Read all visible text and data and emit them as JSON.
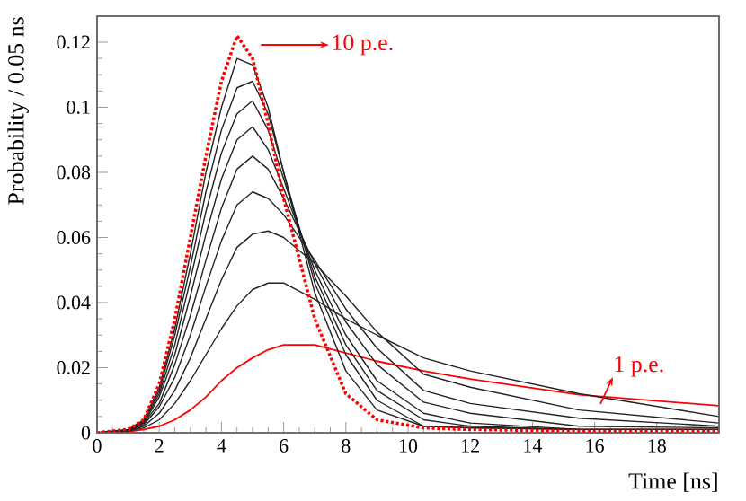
{
  "chart_data": {
    "type": "line",
    "xlabel": "Time [ns]",
    "ylabel": "Probability / 0.05 ns",
    "xlim": [
      0,
      20
    ],
    "ylim": [
      0,
      0.128
    ],
    "xticks": [
      0,
      2,
      4,
      6,
      8,
      10,
      12,
      14,
      16,
      18
    ],
    "yticks": [
      0,
      0.02,
      0.04,
      0.06,
      0.08,
      0.1,
      0.12
    ],
    "grid": false,
    "marker": "none",
    "x": [
      0,
      1,
      1.5,
      2,
      2.5,
      3,
      3.5,
      4,
      4.5,
      5,
      5.5,
      6,
      7,
      8,
      9,
      10.5,
      12,
      15.5,
      20
    ],
    "series": [
      {
        "color": "#ff0000",
        "line_style": "solid",
        "values": [
          0,
          0.0003,
          0.001,
          0.002,
          0.004,
          0.007,
          0.011,
          0.016,
          0.02,
          0.023,
          0.0255,
          0.027,
          0.027,
          0.0245,
          0.022,
          0.019,
          0.0165,
          0.0117,
          0.0083
        ]
      },
      {
        "color": "#222222",
        "line_style": "solid",
        "values": [
          0,
          0.0005,
          0.0015,
          0.004,
          0.009,
          0.016,
          0.024,
          0.032,
          0.039,
          0.044,
          0.046,
          0.046,
          0.041,
          0.035,
          0.03,
          0.023,
          0.019,
          0.012,
          0.005
        ]
      },
      {
        "color": "#222222",
        "line_style": "solid",
        "values": [
          0,
          0.0005,
          0.002,
          0.006,
          0.013,
          0.023,
          0.035,
          0.047,
          0.057,
          0.061,
          0.062,
          0.06,
          0.052,
          0.042,
          0.031,
          0.018,
          0.014,
          0.007,
          0.003
        ]
      },
      {
        "color": "#222222",
        "line_style": "solid",
        "values": [
          0,
          0.0006,
          0.0025,
          0.008,
          0.017,
          0.03,
          0.045,
          0.059,
          0.07,
          0.074,
          0.072,
          0.067,
          0.053,
          0.038,
          0.026,
          0.013,
          0.009,
          0.0045,
          0.002
        ]
      },
      {
        "color": "#222222",
        "line_style": "solid",
        "values": [
          0,
          0.0007,
          0.003,
          0.009,
          0.021,
          0.036,
          0.053,
          0.069,
          0.081,
          0.085,
          0.081,
          0.072,
          0.052,
          0.034,
          0.021,
          0.0094,
          0.006,
          0.002,
          0.0015
        ]
      },
      {
        "color": "#222222",
        "line_style": "solid",
        "values": [
          0,
          0.0008,
          0.003,
          0.011,
          0.024,
          0.042,
          0.061,
          0.078,
          0.09,
          0.094,
          0.087,
          0.075,
          0.05,
          0.03,
          0.016,
          0.006,
          0.003,
          0.001,
          0.001
        ]
      },
      {
        "color": "#222222",
        "line_style": "solid",
        "values": [
          0,
          0.0008,
          0.0035,
          0.012,
          0.027,
          0.047,
          0.068,
          0.086,
          0.098,
          0.102,
          0.093,
          0.078,
          0.048,
          0.027,
          0.013,
          0.004,
          0.002,
          0.001,
          0.001
        ]
      },
      {
        "color": "#222222",
        "line_style": "solid",
        "values": [
          0,
          0.0009,
          0.0035,
          0.013,
          0.03,
          0.051,
          0.074,
          0.093,
          0.106,
          0.108,
          0.098,
          0.08,
          0.046,
          0.024,
          0.01,
          0.002,
          0.0015,
          0.001,
          0.001
        ]
      },
      {
        "color": "#222222",
        "line_style": "solid",
        "values": [
          0,
          0.001,
          0.004,
          0.014,
          0.032,
          0.055,
          0.08,
          0.1,
          0.115,
          0.113,
          0.1,
          0.08,
          0.043,
          0.019,
          0.007,
          0.002,
          0.0015,
          0.001,
          0.001
        ]
      },
      {
        "color": "#ff0000",
        "line_style": "dotted",
        "values": [
          0,
          0.001,
          0.004,
          0.015,
          0.035,
          0.06,
          0.085,
          0.108,
          0.122,
          0.115,
          0.095,
          0.072,
          0.035,
          0.012,
          0.004,
          0.0015,
          0.001,
          0.0005,
          0.0005
        ]
      }
    ],
    "annotations": [
      "10 p.e.",
      "1 p.e."
    ]
  }
}
